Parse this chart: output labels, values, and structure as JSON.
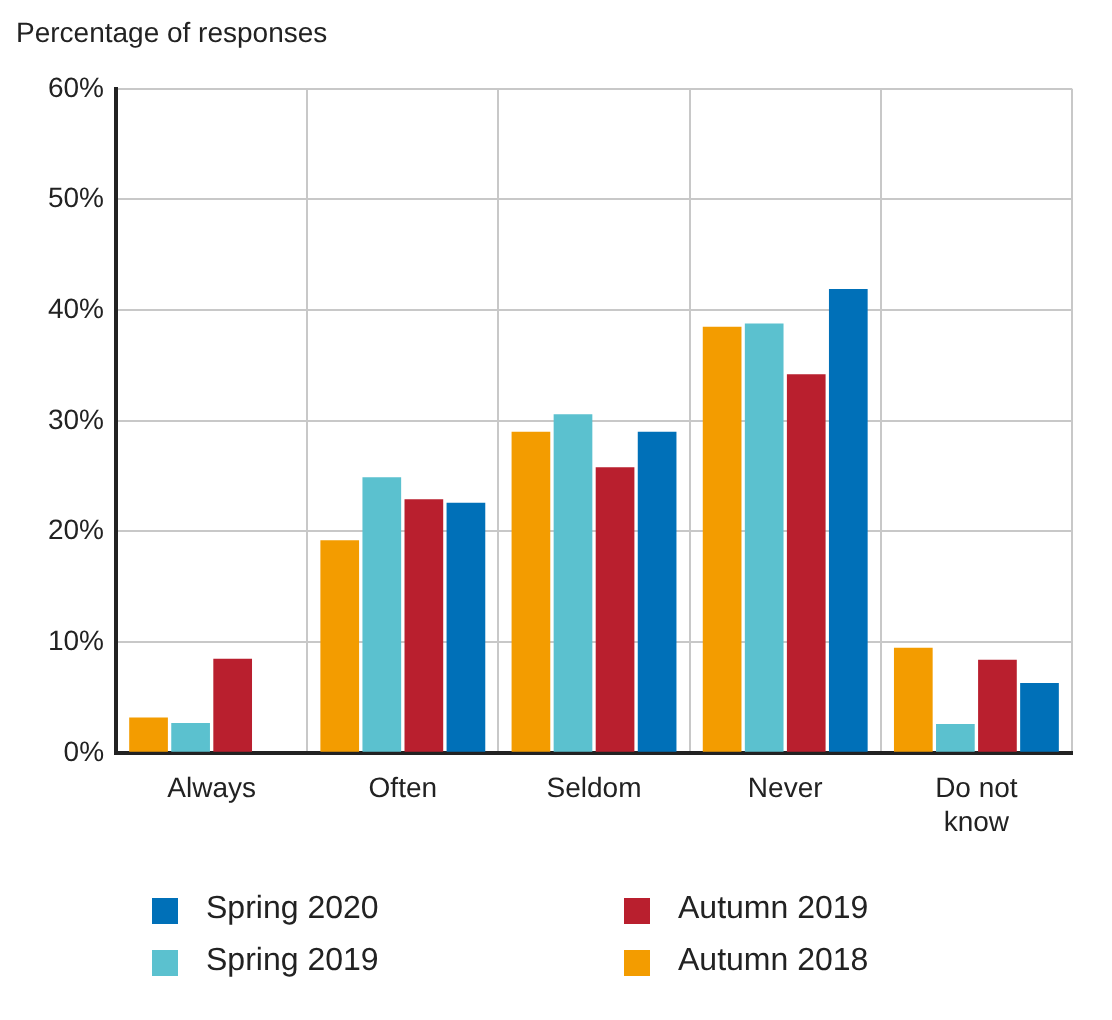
{
  "chart_data": {
    "type": "bar",
    "ylabel": "Percentage of responses",
    "categories": [
      "Always",
      "Often",
      "Seldom",
      "Never",
      "Do not know"
    ],
    "series": [
      {
        "name": "Autumn 2018",
        "color": "#f39c00",
        "values": [
          3.2,
          19.2,
          29.0,
          38.5,
          9.5
        ]
      },
      {
        "name": "Spring 2019",
        "color": "#5bc1cf",
        "values": [
          2.7,
          24.9,
          30.6,
          38.8,
          2.6
        ]
      },
      {
        "name": "Autumn 2019",
        "color": "#b91f2e",
        "values": [
          8.5,
          22.9,
          25.8,
          34.2,
          8.4
        ]
      },
      {
        "name": "Spring 2020",
        "color": "#0070b8",
        "values": [
          null,
          22.6,
          29.0,
          41.9,
          6.3
        ]
      }
    ],
    "ylim": [
      0,
      60
    ],
    "yticks": [
      {
        "value": 0,
        "label": "0%"
      },
      {
        "value": 10,
        "label": "10%"
      },
      {
        "value": 20,
        "label": "20%"
      },
      {
        "value": 30,
        "label": "30%"
      },
      {
        "value": 40,
        "label": "40%"
      },
      {
        "value": 50,
        "label": "50%"
      },
      {
        "value": 60,
        "label": "60%"
      }
    ],
    "grid": true,
    "legend": "bottom"
  }
}
